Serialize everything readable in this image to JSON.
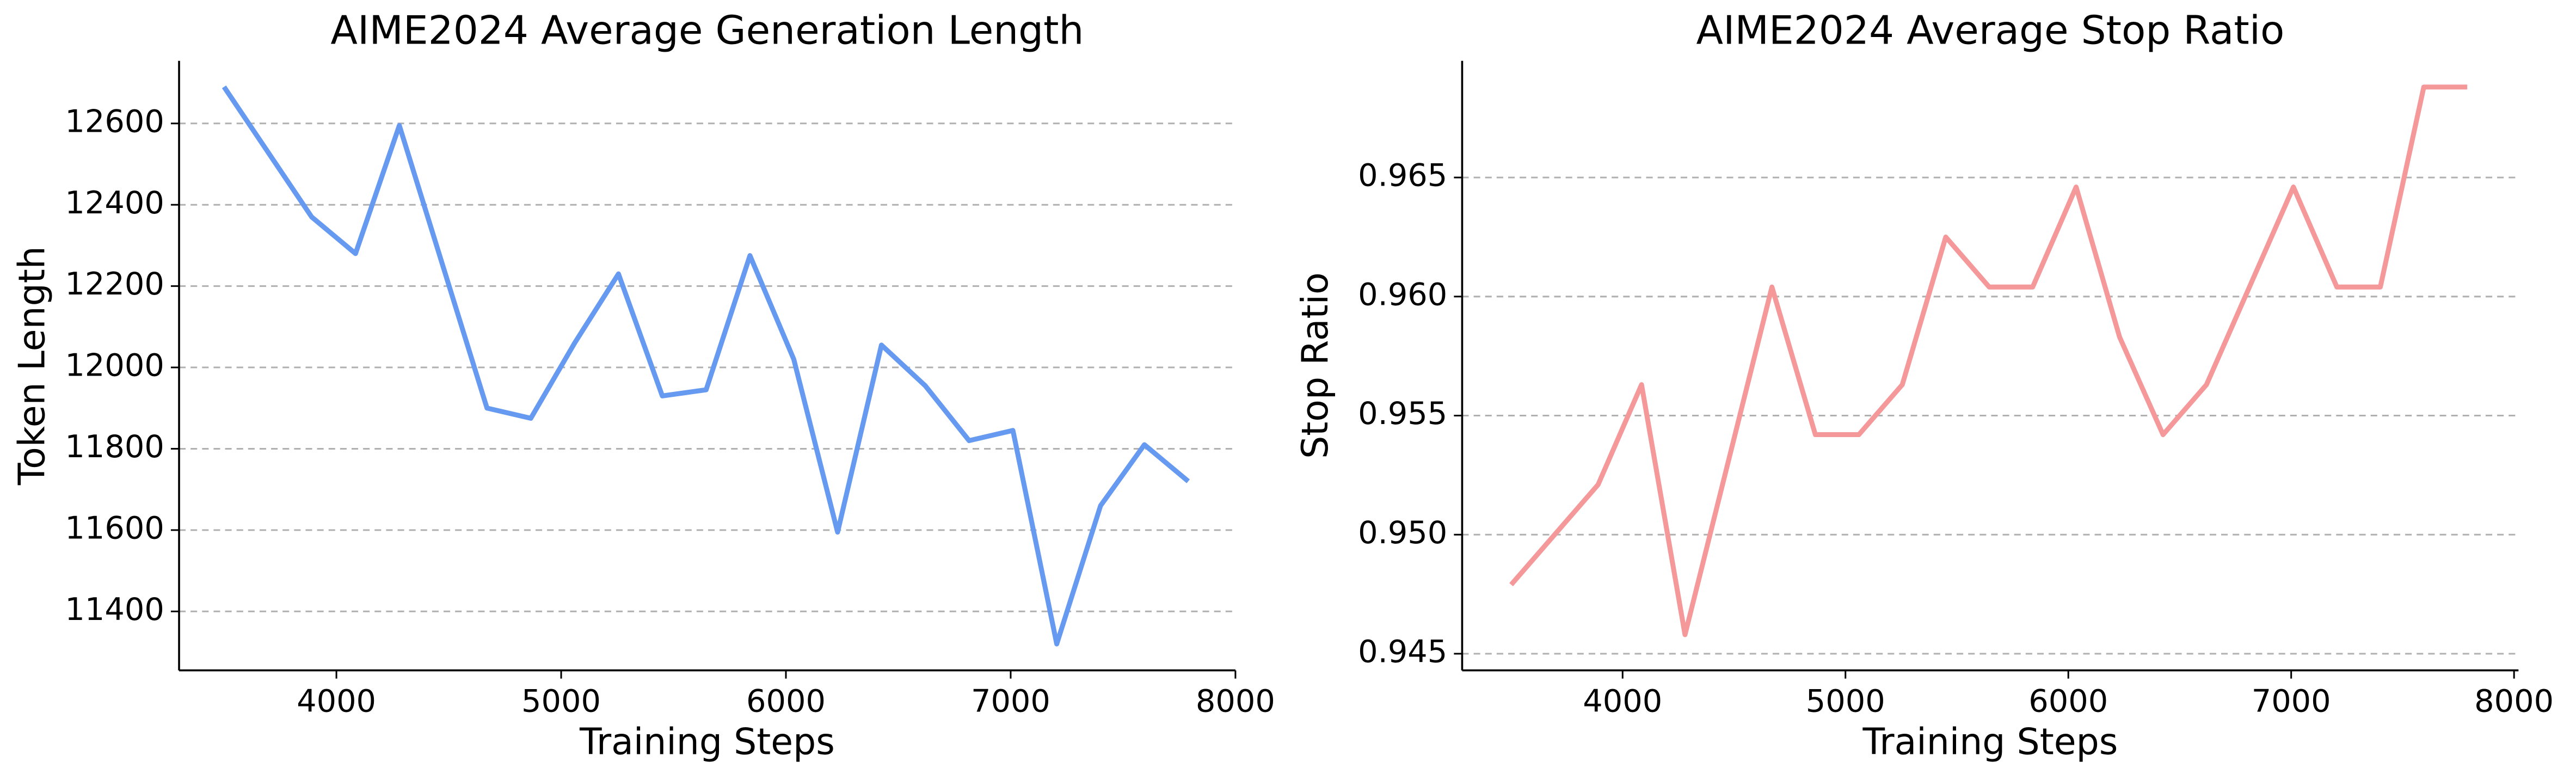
{
  "chart_data": [
    {
      "type": "line",
      "title": "AIME2024 Average Generation Length",
      "xlabel": "Training Steps",
      "ylabel": "Token Length",
      "x": [
        3500,
        3890,
        4085,
        4280,
        4670,
        4865,
        5060,
        5255,
        5450,
        5645,
        5840,
        6035,
        6230,
        6425,
        6620,
        6815,
        7010,
        7205,
        7400,
        7595,
        7790
      ],
      "series": [
        {
          "name": "Token Length",
          "color": "#6699f0",
          "values": [
            12690,
            12370,
            12280,
            12595,
            11900,
            11875,
            12060,
            12230,
            11930,
            11945,
            12275,
            12020,
            11595,
            12055,
            11955,
            11820,
            11845,
            11320,
            11660,
            11810,
            11720
          ]
        }
      ],
      "xlim": [
        3300,
        8000
      ],
      "xticks": [
        4000,
        5000,
        6000,
        7000,
        8000
      ],
      "ylim": [
        11255,
        12754
      ],
      "yticks": [
        11400,
        11600,
        11800,
        12000,
        12200,
        12400,
        12600
      ],
      "grid": true
    },
    {
      "type": "line",
      "title": "AIME2024 Average Stop Ratio",
      "xlabel": "Training Steps",
      "ylabel": "Stop Ratio",
      "x": [
        3500,
        3890,
        4085,
        4280,
        4670,
        4865,
        5060,
        5255,
        5450,
        5645,
        5840,
        6035,
        6230,
        6425,
        6620,
        7010,
        7205,
        7400,
        7595,
        7790
      ],
      "series": [
        {
          "name": "Stop Ratio",
          "color": "#f4989a",
          "values": [
            0.9479,
            0.9521,
            0.9563,
            0.9458,
            0.9604,
            0.9542,
            0.9542,
            0.9563,
            0.9625,
            0.9604,
            0.9604,
            0.9646,
            0.9583,
            0.9542,
            0.9563,
            0.9646,
            0.9604,
            0.9604,
            0.9688,
            0.9688
          ]
        }
      ],
      "xlim": [
        3280,
        8020
      ],
      "xticks": [
        4000,
        5000,
        6000,
        7000,
        8000
      ],
      "ylim": [
        0.9443,
        0.9699
      ],
      "yticks": [
        0.945,
        {
          "value": 0.95,
          "label": "0.950"
        },
        0.955,
        {
          "value": 0.96,
          "label": "0.960"
        },
        0.965
      ],
      "grid": true
    }
  ]
}
